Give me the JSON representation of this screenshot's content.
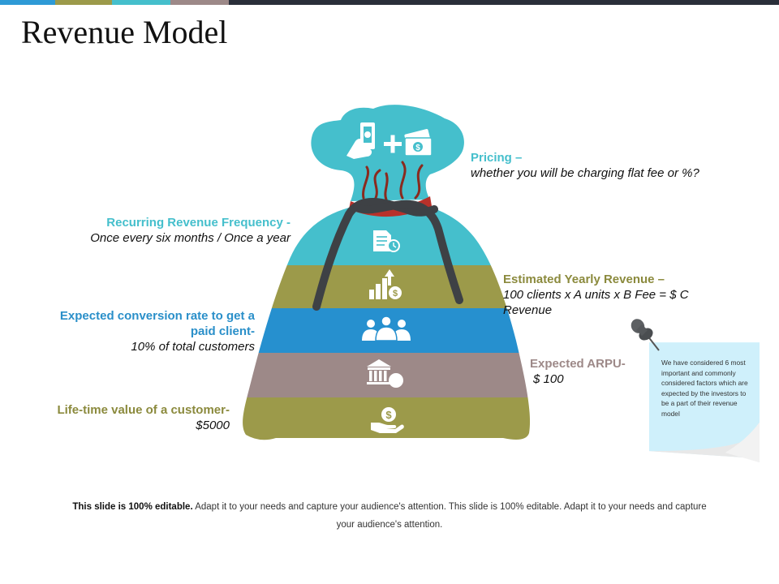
{
  "title": "Revenue Model",
  "colors": {
    "teal": "#45bfcc",
    "olive": "#9c9a4a",
    "blue": "#2690cf",
    "mauve": "#9d8988",
    "olive_dark": "#8b8a3d",
    "blue_label": "#2a8fc9",
    "topbar": [
      "#2e9ad6",
      "#9c9a4a",
      "#45bfcc",
      "#9d8988",
      "#2a2f3a"
    ]
  },
  "icons": {
    "bag_top": [
      "hand-phone-icon",
      "plus-icon",
      "cash-icon"
    ],
    "layers": [
      "document-clock-icon",
      "growth-chart-dollar-icon",
      "people-group-icon",
      "bank-icon",
      "hand-dollar-icon"
    ]
  },
  "labels": {
    "pricing": {
      "head": "Pricing –",
      "sub": "whether you will be charging flat fee or %?"
    },
    "recurring": {
      "head": "Recurring Revenue Frequency -",
      "sub": "Once every six months / Once a year"
    },
    "yearly": {
      "head": "Estimated Yearly Revenue –",
      "sub1": "100 clients x A units x B Fee = $ C",
      "sub2": "Revenue"
    },
    "conversion": {
      "head1": "Expected conversion rate to get a",
      "head2": "paid client-",
      "sub": "10% of total customers"
    },
    "arpu": {
      "head": "Expected ARPU-",
      "sub": "$ 100"
    },
    "lifetime": {
      "head": "Life-time value of a customer-",
      "sub": "$5000"
    }
  },
  "note": {
    "text": "We have considered 6 most important and commonly considered factors which are expected by the investors to be a part of their revenue model"
  },
  "footer": {
    "bold": "This slide is 100% editable.",
    "text": " Adapt it to your needs and capture your audience's attention. This slide is 100% editable. Adapt it to your needs and capture your audience's attention."
  }
}
